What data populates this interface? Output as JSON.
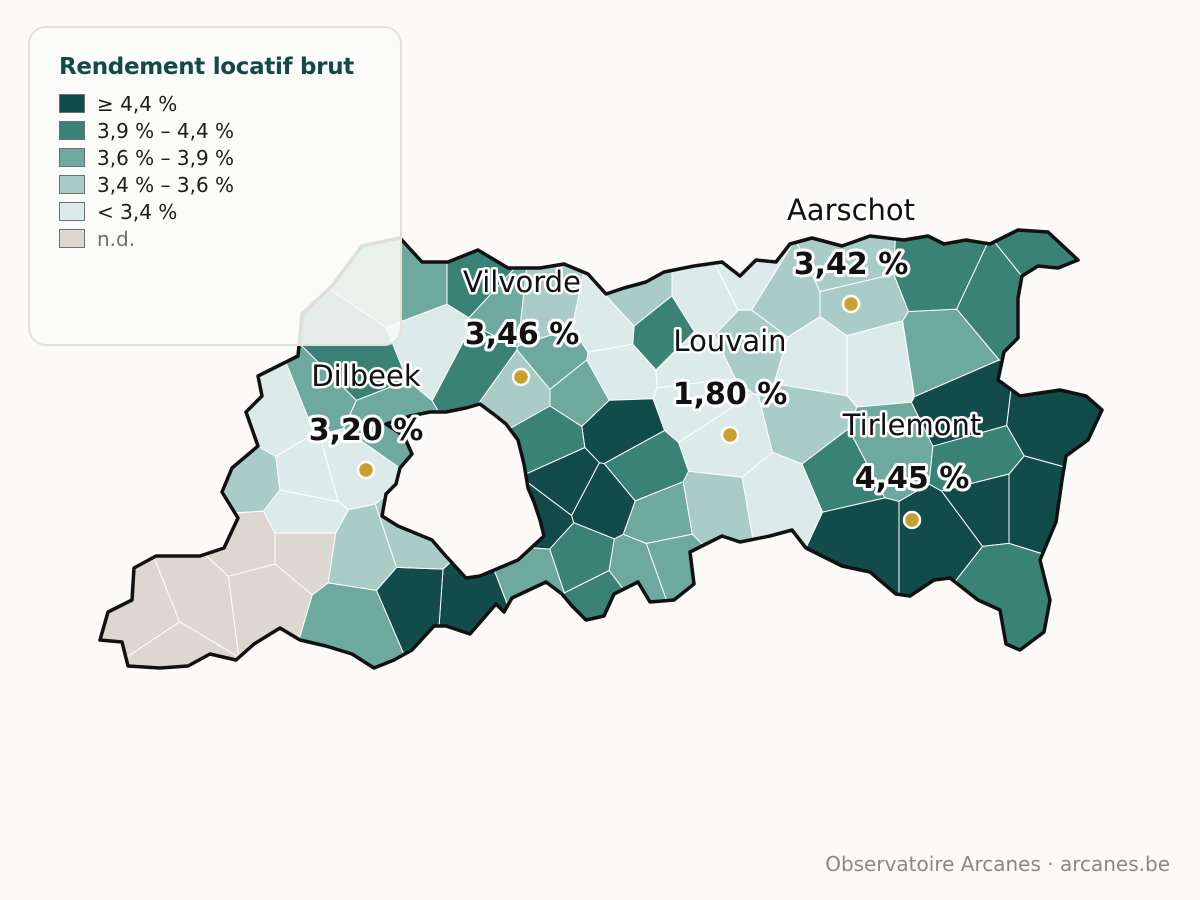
{
  "legend": {
    "title": "Rendement locatif brut",
    "items": [
      {
        "label": "≥ 4,4 %",
        "color": "#124c4a"
      },
      {
        "label": "3,9 % – 4,4 %",
        "color": "#3a8275"
      },
      {
        "label": "3,6 % – 3,9 %",
        "color": "#6da99e"
      },
      {
        "label": "3,4 % – 3,6 %",
        "color": "#a9cdc6"
      },
      {
        "label": "< 3,4 %",
        "color": "#dcebe9"
      },
      {
        "label": "n.d.",
        "color": "#dcd8d1"
      }
    ]
  },
  "cities": [
    {
      "name": "Aarschot",
      "value": "3,42 %"
    },
    {
      "name": "Vilvorde",
      "value": "3,46 %"
    },
    {
      "name": "Louvain",
      "value": "1,80 %"
    },
    {
      "name": "Dilbeek",
      "value": "3,20 %"
    },
    {
      "name": "Tirlemont",
      "value": "4,45 %"
    }
  ],
  "source": "Observatoire Arcanes · arcanes.be",
  "colors": {
    "marker": "#c9a02e",
    "outline": "#111111",
    "background": "#fbfaf8"
  }
}
